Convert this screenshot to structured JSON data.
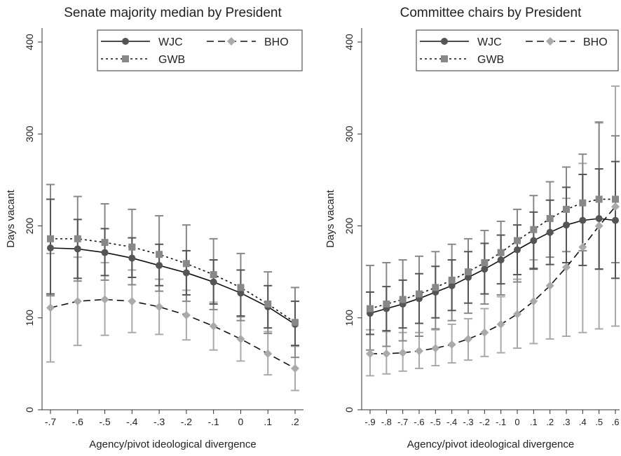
{
  "chart_data": [
    {
      "type": "line",
      "title": "Senate majority median by President",
      "xlabel": "Agency/pivot ideological divergence",
      "ylabel": "Days vacant",
      "x": [
        -0.7,
        -0.6,
        -0.5,
        -0.4,
        -0.3,
        -0.2,
        -0.1,
        0,
        0.1,
        0.2
      ],
      "x_tick_labels": [
        "-.7",
        "-.6",
        "-.5",
        "-.4",
        "-.3",
        "-.2",
        "-.1",
        "0",
        ".1",
        ".2"
      ],
      "xlim": [
        -0.7,
        0.2
      ],
      "y_ticks": [
        0,
        100,
        200,
        300,
        400
      ],
      "y_tick_labels": [
        "0",
        "100",
        "200",
        "300",
        "400"
      ],
      "ylim": [
        0,
        400
      ],
      "legend_position": "top-right",
      "series": [
        {
          "name": "WJC",
          "color": "#555555",
          "marker": "circle",
          "dash": "solid",
          "values": [
            176,
            175,
            171,
            165,
            157,
            149,
            139,
            127,
            112,
            93
          ],
          "lower": [
            126,
            143,
            146,
            144,
            135,
            125,
            115,
            102,
            89,
            70
          ],
          "upper": [
            229,
            207,
            197,
            187,
            180,
            173,
            163,
            152,
            135,
            118
          ]
        },
        {
          "name": "GWB",
          "color": "#888888",
          "marker": "square",
          "dash": "dotted",
          "values": [
            186,
            186,
            182,
            177,
            169,
            159,
            147,
            133,
            115,
            95
          ],
          "lower": [
            124,
            140,
            141,
            136,
            129,
            118,
            109,
            97,
            83,
            57
          ],
          "upper": [
            245,
            232,
            224,
            218,
            211,
            201,
            186,
            170,
            150,
            133
          ]
        },
        {
          "name": "BHO",
          "color": "#aaaaaa",
          "marker": "diamond",
          "dash": "dashed",
          "values": [
            111,
            118,
            120,
            118,
            112,
            103,
            91,
            77,
            61,
            45
          ],
          "lower": [
            52,
            70,
            81,
            84,
            82,
            76,
            65,
            53,
            38,
            21
          ],
          "upper": [
            170,
            166,
            160,
            152,
            142,
            130,
            117,
            101,
            85,
            69
          ]
        }
      ]
    },
    {
      "type": "line",
      "title": "Committee chairs by President",
      "xlabel": "Agency/pivot ideological divergence",
      "ylabel": "Days vacant",
      "x": [
        -0.9,
        -0.8,
        -0.7,
        -0.6,
        -0.5,
        -0.4,
        -0.3,
        -0.2,
        -0.1,
        0,
        0.1,
        0.2,
        0.3,
        0.4,
        0.5,
        0.6
      ],
      "x_tick_labels": [
        "-.9",
        "-.8",
        "-.7",
        "-.6",
        "-.5",
        "-.4",
        "-.3",
        "-.2",
        "-.1",
        "0",
        ".1",
        ".2",
        ".3",
        ".4",
        ".5",
        ".6"
      ],
      "xlim": [
        -0.9,
        0.6
      ],
      "y_ticks": [
        0,
        100,
        200,
        300,
        400
      ],
      "y_tick_labels": [
        "0",
        "100",
        "200",
        "300",
        "400"
      ],
      "ylim": [
        0,
        400
      ],
      "legend_position": "top-right",
      "series": [
        {
          "name": "WJC",
          "color": "#555555",
          "marker": "circle",
          "dash": "solid",
          "values": [
            105,
            110,
            115,
            121,
            128,
            135,
            144,
            153,
            163,
            174,
            184,
            193,
            201,
            206,
            208,
            206
          ],
          "lower": [
            82,
            86,
            89,
            94,
            100,
            108,
            116,
            126,
            137,
            147,
            153,
            158,
            160,
            157,
            153,
            143
          ],
          "upper": [
            128,
            134,
            141,
            148,
            156,
            163,
            172,
            181,
            190,
            201,
            215,
            228,
            242,
            256,
            262,
            270
          ]
        },
        {
          "name": "GWB",
          "color": "#888888",
          "marker": "square",
          "dash": "dotted",
          "values": [
            110,
            115,
            120,
            126,
            133,
            141,
            150,
            160,
            171,
            184,
            196,
            208,
            218,
            225,
            229,
            229
          ],
          "lower": [
            65,
            69,
            75,
            80,
            88,
            97,
            105,
            115,
            125,
            139,
            154,
            166,
            172,
            173,
            153,
            160
          ],
          "upper": [
            157,
            160,
            163,
            167,
            172,
            180,
            186,
            195,
            205,
            218,
            233,
            248,
            264,
            278,
            313,
            298
          ]
        },
        {
          "name": "BHO",
          "color": "#aaaaaa",
          "marker": "diamond",
          "dash": "dashed",
          "values": [
            61,
            61,
            62,
            64,
            67,
            71,
            77,
            84,
            93,
            104,
            118,
            135,
            155,
            177,
            200,
            221
          ],
          "lower": [
            37,
            39,
            42,
            45,
            48,
            51,
            54,
            58,
            62,
            67,
            72,
            77,
            80,
            84,
            88,
            91
          ],
          "upper": [
            87,
            85,
            84,
            84,
            87,
            93,
            99,
            110,
            123,
            142,
            163,
            192,
            230,
            268,
            312,
            352
          ]
        }
      ]
    }
  ]
}
